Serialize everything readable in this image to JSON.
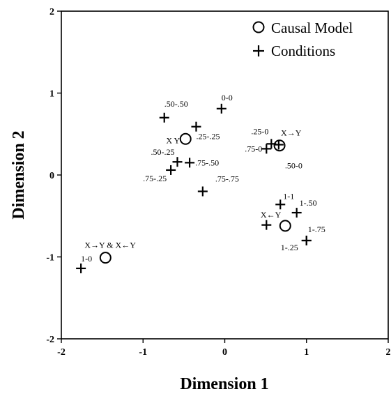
{
  "chart_data": {
    "type": "scatter",
    "xlabel": "Dimension 1",
    "ylabel": "Dimension 2",
    "xlim": [
      -2,
      2
    ],
    "ylim": [
      -2,
      2
    ],
    "xticks": [
      "-2",
      "-1",
      "0",
      "1",
      "2"
    ],
    "yticks": [
      "-2",
      "-1",
      "0",
      "1",
      "2"
    ],
    "grid": false,
    "legend": {
      "placement": "top-right",
      "entries": [
        {
          "marker": "circle",
          "label": "Causal Model"
        },
        {
          "marker": "plus",
          "label": "Conditions"
        }
      ]
    },
    "series": [
      {
        "name": "Causal Model",
        "marker": "circle",
        "points": [
          {
            "x": -0.48,
            "y": 0.44,
            "label": "X   Y",
            "anchor": "end",
            "dx": -8,
            "dy": 6
          },
          {
            "x": 0.67,
            "y": 0.36,
            "label": "X→Y",
            "anchor": "start",
            "dx": 2,
            "dy": -14
          },
          {
            "x": 0.74,
            "y": -0.62,
            "label": "X←Y",
            "anchor": "end",
            "dx": -6,
            "dy": -12
          },
          {
            "x": -1.46,
            "y": -1.01,
            "label": "X→Y & X←Y",
            "anchor": "start",
            "dx": -30,
            "dy": -14
          }
        ]
      },
      {
        "name": "Conditions",
        "marker": "plus",
        "points": [
          {
            "x": -0.74,
            "y": 0.7,
            "label": ".50-.50",
            "anchor": "start",
            "dx": 0,
            "dy": -16
          },
          {
            "x": -0.04,
            "y": 0.81,
            "label": "0-0",
            "anchor": "start",
            "dx": 0,
            "dy": -12
          },
          {
            "x": -0.35,
            "y": 0.59,
            "label": ".25-.25",
            "anchor": "start",
            "dx": 0,
            "dy": 18
          },
          {
            "x": -0.58,
            "y": 0.16,
            "label": ".50-.25",
            "anchor": "end",
            "dx": -4,
            "dy": -10
          },
          {
            "x": -0.43,
            "y": 0.15,
            "label": ".75-.50",
            "anchor": "start",
            "dx": 8,
            "dy": 4
          },
          {
            "x": -0.66,
            "y": 0.06,
            "label": ".75-.25",
            "anchor": "end",
            "dx": -6,
            "dy": 16
          },
          {
            "x": -0.27,
            "y": -0.2,
            "label": ".75-.75",
            "anchor": "start",
            "dx": 18,
            "dy": -14
          },
          {
            "x": 0.57,
            "y": 0.38,
            "label": ".25-0",
            "anchor": "end",
            "dx": -4,
            "dy": -14
          },
          {
            "x": 0.51,
            "y": 0.32,
            "label": ".75-0",
            "anchor": "end",
            "dx": -6,
            "dy": 4
          },
          {
            "x": 0.66,
            "y": 0.37,
            "label": ".50-0",
            "anchor": "start",
            "dx": 9,
            "dy": 34
          },
          {
            "x": 0.68,
            "y": -0.36,
            "label": "1-1",
            "anchor": "start",
            "dx": 4,
            "dy": -8
          },
          {
            "x": 0.88,
            "y": -0.46,
            "label": "1-.50",
            "anchor": "start",
            "dx": 4,
            "dy": -10
          },
          {
            "x": 0.51,
            "y": -0.61,
            "label": "",
            "anchor": "start",
            "dx": 0,
            "dy": 0
          },
          {
            "x": 1.0,
            "y": -0.8,
            "label": "1-.75",
            "anchor": "start",
            "dx": 2,
            "dy": -12
          },
          {
            "x": 1.0,
            "y": -0.8,
            "label": "1-.25",
            "anchor": "end",
            "dx": -12,
            "dy": 14
          },
          {
            "x": -1.76,
            "y": -1.14,
            "label": "1-0",
            "anchor": "start",
            "dx": 0,
            "dy": -10
          }
        ]
      }
    ]
  }
}
